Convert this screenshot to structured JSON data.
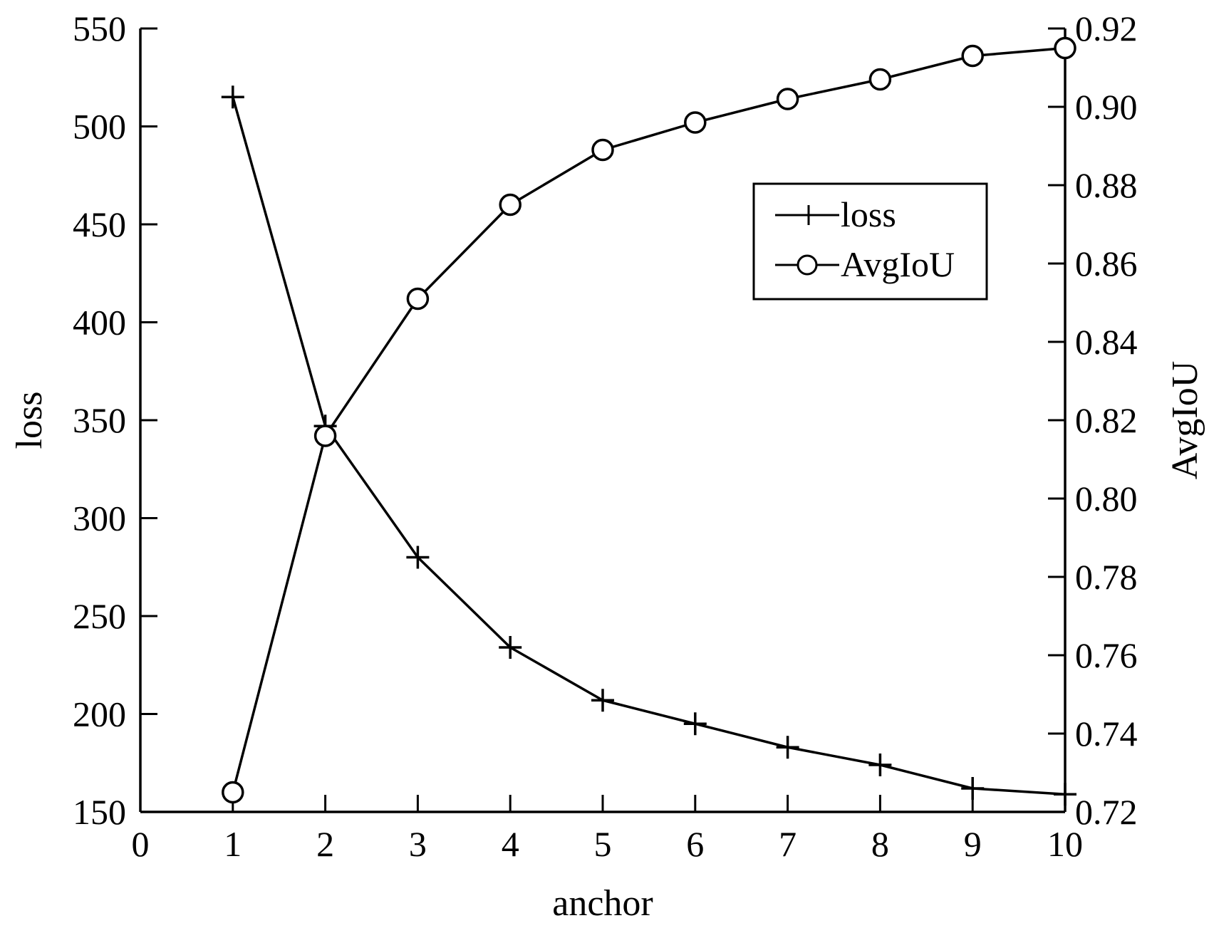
{
  "chart_data": {
    "type": "line",
    "title": "",
    "xlabel": "anchor",
    "ylabel_left": "loss",
    "ylabel_right": "AvgIoU",
    "xlim": [
      0,
      10
    ],
    "ylim_left": [
      150,
      550
    ],
    "ylim_right": [
      0.72,
      0.92
    ],
    "x_ticks": [
      "0",
      "1",
      "2",
      "3",
      "4",
      "5",
      "6",
      "7",
      "8",
      "9",
      "10"
    ],
    "y_left_ticks": [
      "150",
      "200",
      "250",
      "300",
      "350",
      "400",
      "450",
      "500",
      "550"
    ],
    "y_right_ticks": [
      "0.72",
      "0.74",
      "0.76",
      "0.78",
      "0.80",
      "0.82",
      "0.84",
      "0.86",
      "0.88",
      "0.90",
      "0.92"
    ],
    "grid": false,
    "legend_position": "top-right",
    "series": [
      {
        "name": "loss",
        "axis": "left",
        "marker": "plus",
        "color": "#000000",
        "x": [
          1,
          2,
          3,
          4,
          5,
          6,
          7,
          8,
          9,
          10
        ],
        "values": [
          515,
          347,
          280,
          234,
          207,
          195,
          183,
          174,
          162,
          159
        ]
      },
      {
        "name": "AvgIoU",
        "axis": "right",
        "marker": "circle",
        "color": "#000000",
        "x": [
          1,
          2,
          3,
          4,
          5,
          6,
          7,
          8,
          9,
          10
        ],
        "values": [
          0.725,
          0.816,
          0.851,
          0.875,
          0.889,
          0.896,
          0.902,
          0.907,
          0.913,
          0.915
        ]
      }
    ]
  }
}
